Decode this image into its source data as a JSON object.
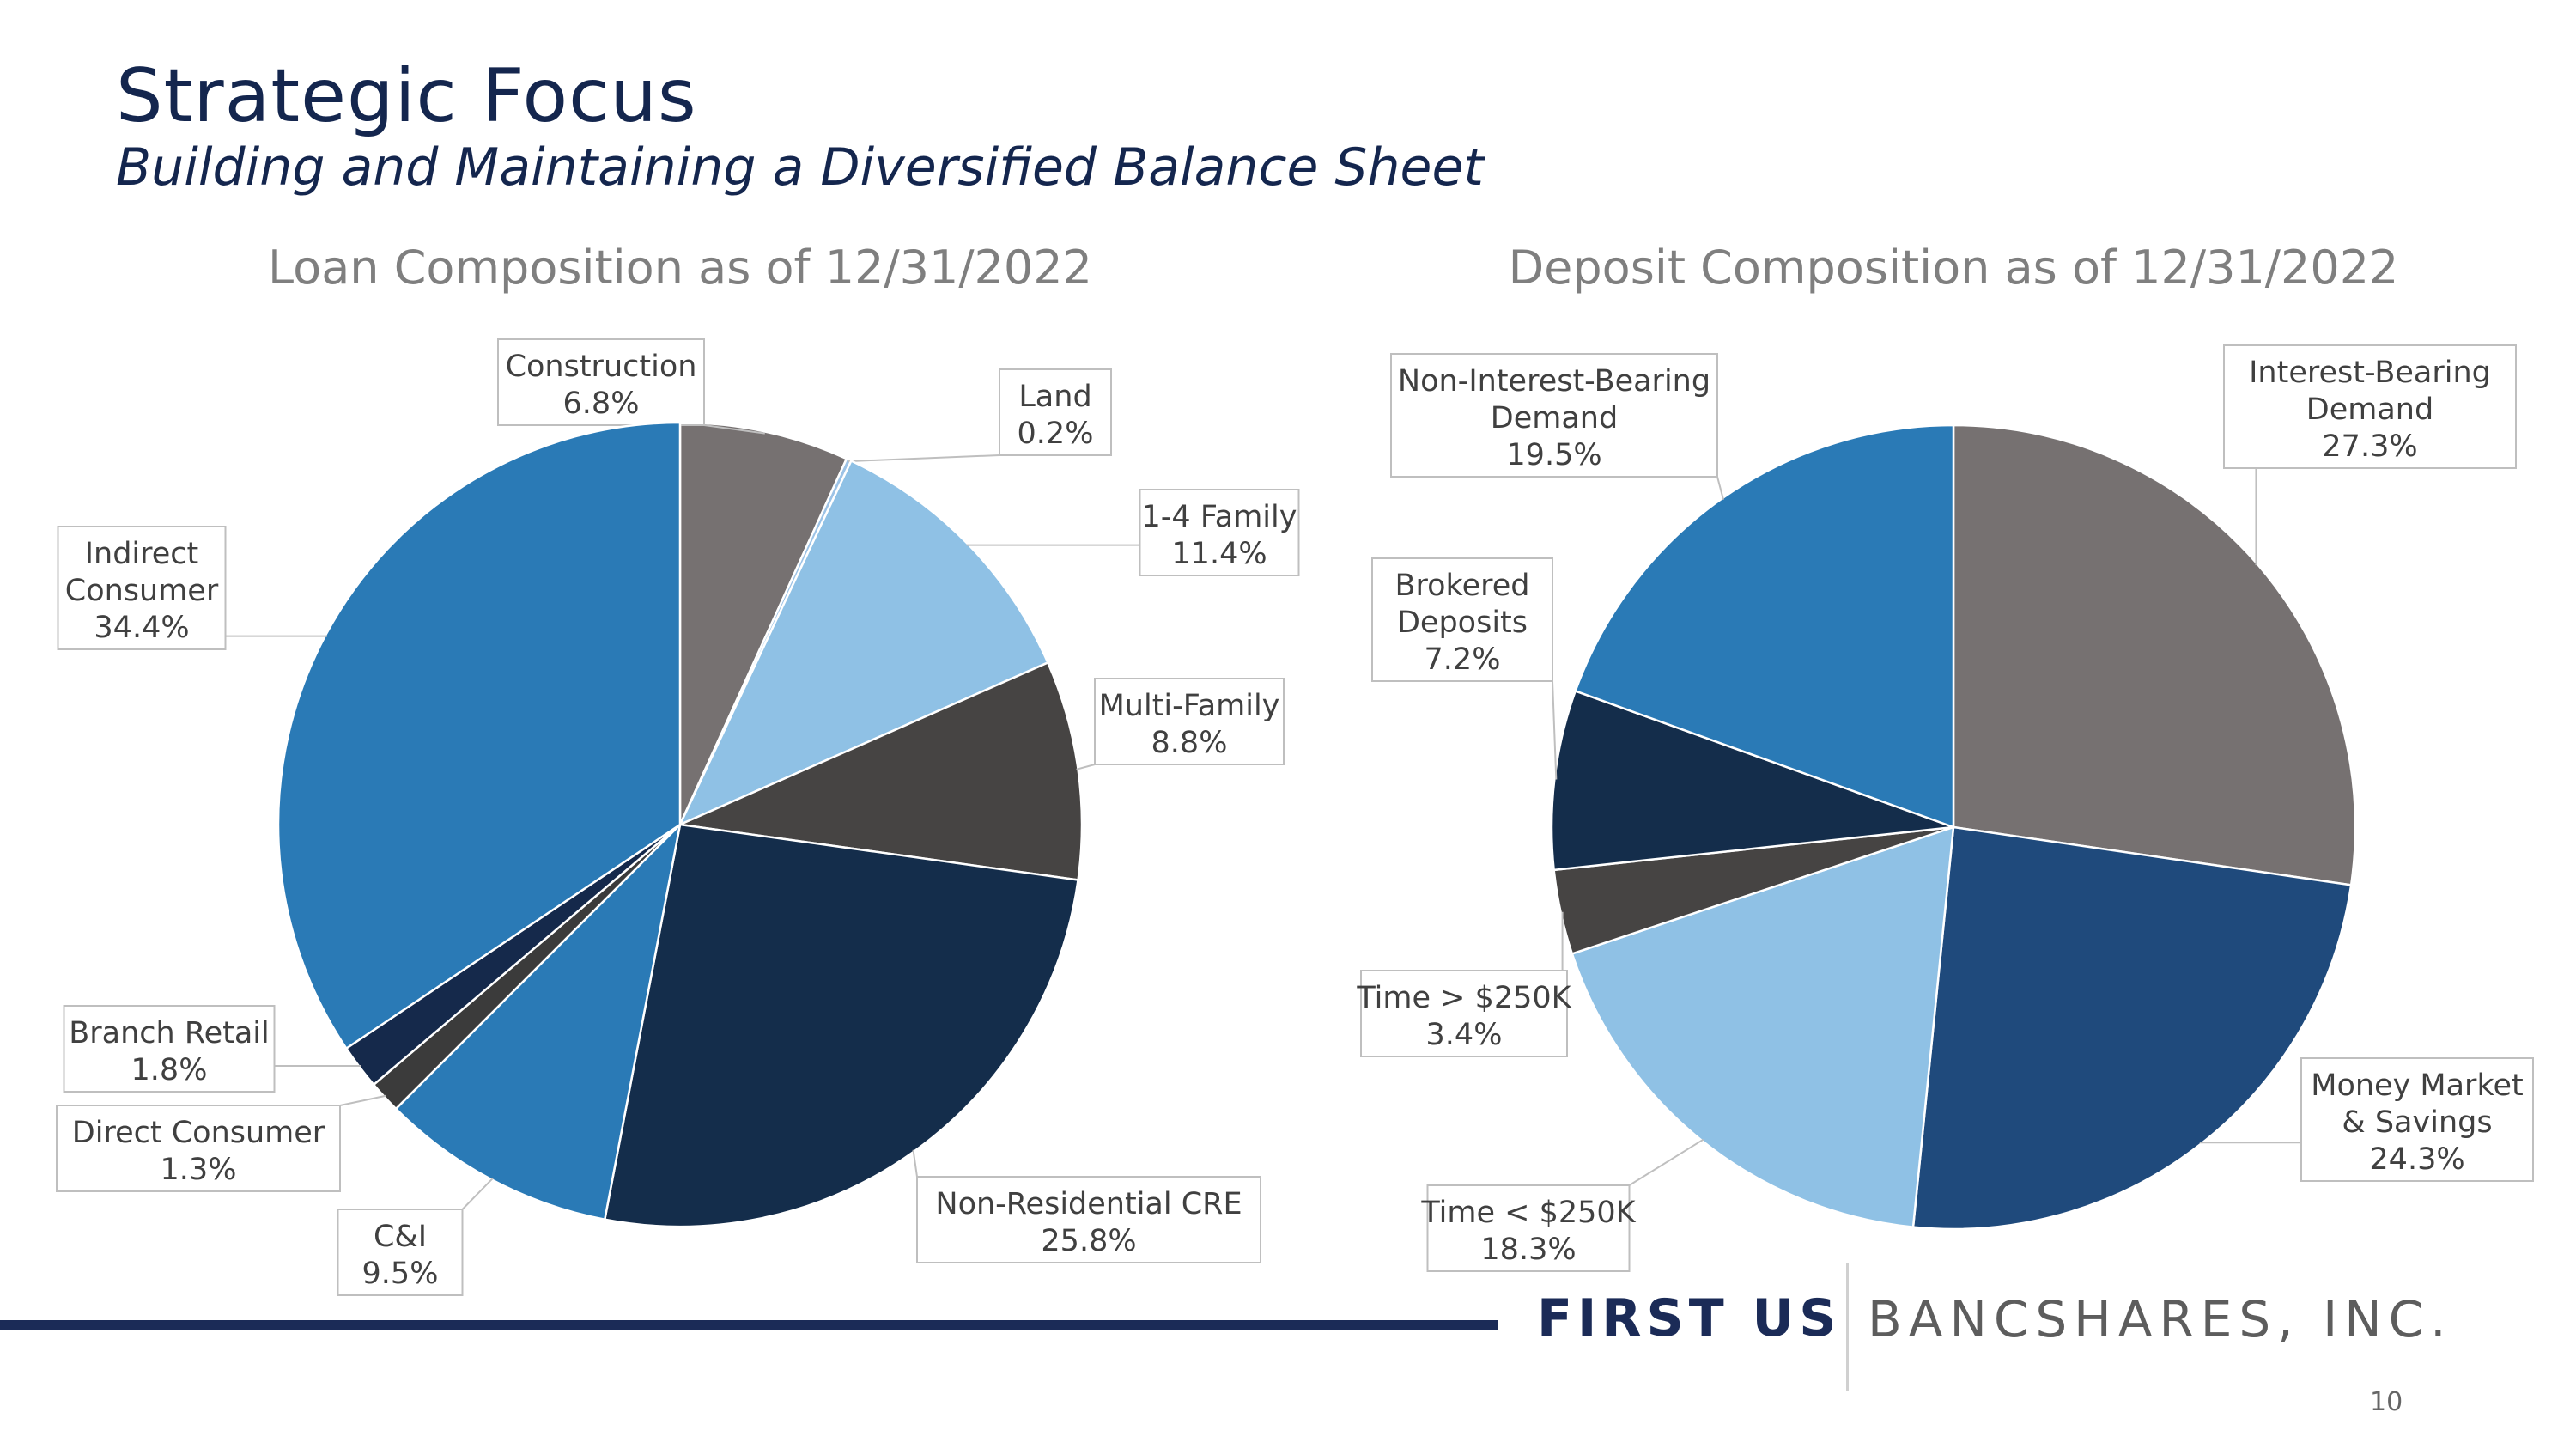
{
  "header": {
    "title": "Strategic Focus",
    "subtitle": "Building and Maintaining a Diversified Balance Sheet"
  },
  "footer": {
    "logo_first": "FIRST US",
    "logo_bank": "BANCSHARES, INC.",
    "page_number": "10"
  },
  "chart_data": [
    {
      "type": "pie",
      "title": "Loan Composition as of 12/31/2022",
      "slices": [
        {
          "label": [
            "Construction"
          ],
          "pct": "6.8%",
          "value": 6.8,
          "color": "#767171"
        },
        {
          "label": [
            "Land"
          ],
          "pct": "0.2%",
          "value": 0.2,
          "color": "#9dc3e6"
        },
        {
          "label": [
            "1-4 Family"
          ],
          "pct": "11.4%",
          "value": 11.4,
          "color": "#8fc1e5"
        },
        {
          "label": [
            "Multi-Family"
          ],
          "pct": "8.8%",
          "value": 8.8,
          "color": "#464443"
        },
        {
          "label": [
            "Non-Residential CRE"
          ],
          "pct": "25.8%",
          "value": 25.8,
          "color": "#142d4b"
        },
        {
          "label": [
            "C&I"
          ],
          "pct": "9.5%",
          "value": 9.5,
          "color": "#2a7ab6"
        },
        {
          "label": [
            "Direct Consumer"
          ],
          "pct": "1.3%",
          "value": 1.3,
          "color": "#3b3b3b"
        },
        {
          "label": [
            "Branch Retail"
          ],
          "pct": "1.8%",
          "value": 1.8,
          "color": "#15294b"
        },
        {
          "label": [
            "Indirect",
            "Consumer"
          ],
          "pct": "34.4%",
          "value": 34.4,
          "color": "#2a7ab6"
        }
      ]
    },
    {
      "type": "pie",
      "title": "Deposit Composition as of 12/31/2022",
      "slices": [
        {
          "label": [
            "Interest-Bearing",
            "Demand"
          ],
          "pct": "27.3%",
          "value": 27.3,
          "color": "#767171"
        },
        {
          "label": [
            "Money Market",
            "& Savings"
          ],
          "pct": "24.3%",
          "value": 24.3,
          "color": "#1f4a7c"
        },
        {
          "label": [
            "Time < $250K"
          ],
          "pct": "18.3%",
          "value": 18.3,
          "color": "#8fc1e5"
        },
        {
          "label": [
            "Time > $250K"
          ],
          "pct": "3.4%",
          "value": 3.4,
          "color": "#464443"
        },
        {
          "label": [
            "Brokered",
            "Deposits"
          ],
          "pct": "7.2%",
          "value": 7.2,
          "color": "#142d4b"
        },
        {
          "label": [
            "Non-Interest-Bearing",
            "Demand"
          ],
          "pct": "19.5%",
          "value": 19.5,
          "color": "#2a7ab6"
        }
      ]
    }
  ]
}
